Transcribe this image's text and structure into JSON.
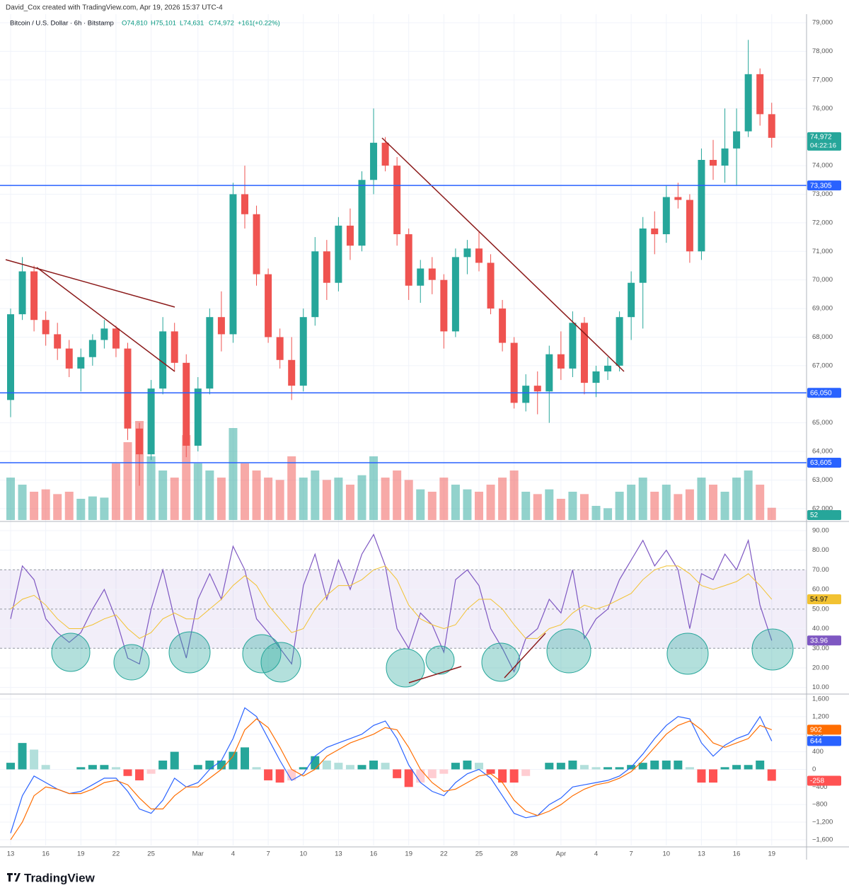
{
  "header": {
    "credit": "David_Cox created with TradingView.com, Apr 19, 2026 15:37 UTC-4",
    "symbol": "Bitcoin / U.S. Dollar · 6h · Bitstamp",
    "ohlc": [
      {
        "value": 74810,
        "label": "O74,810"
      },
      {
        "value": 75101,
        "label": "H75,101"
      },
      {
        "value": 74631,
        "label": "L74,631"
      },
      {
        "value": 74972,
        "label": "C74,972"
      }
    ],
    "change": {
      "value": 161,
      "label": "+161"
    },
    "change_pct": {
      "value": 0.22,
      "label": "(+0.22%)"
    },
    "countdown": "04:22:16"
  },
  "footer": {
    "brand": "TradingView"
  },
  "chart_data": [
    {
      "type": "candlestick",
      "up_color": "#26a69a",
      "down_color": "#ef5350",
      "grid": true,
      "categories": [
        "13",
        null,
        null,
        "16",
        null,
        null,
        "19",
        null,
        null,
        "22",
        null,
        null,
        "25",
        null,
        null,
        null,
        "Mar",
        null,
        null,
        "4",
        null,
        null,
        "7",
        null,
        null,
        "10",
        null,
        null,
        "13",
        null,
        null,
        "16",
        null,
        null,
        "19",
        null,
        null,
        "22",
        null,
        null,
        "25",
        null,
        null,
        "28",
        null,
        null,
        null,
        "Apr",
        null,
        null,
        "4",
        null,
        null,
        "7",
        null,
        null,
        "10",
        null,
        null,
        "13",
        null,
        null,
        "16",
        null,
        null,
        "19"
      ],
      "open": [
        65800,
        68800,
        70300,
        68600,
        68100,
        67600,
        66900,
        67300,
        67900,
        68300,
        67600,
        64800,
        63900,
        66200,
        68200,
        67100,
        64200,
        66200,
        68700,
        68100,
        73000,
        72300,
        70200,
        68000,
        67200,
        66300,
        68700,
        71000,
        69900,
        71900,
        71200,
        73500,
        74800,
        74000,
        71600,
        69800,
        70400,
        70000,
        68200,
        70800,
        71100,
        70600,
        69000,
        67800,
        65700,
        66300,
        66100,
        67400,
        66900,
        68500,
        66400,
        66800,
        67000,
        68700,
        69900,
        71800,
        71600,
        72900,
        72800,
        71000,
        74200,
        74000,
        74600,
        75200,
        77200,
        75800
      ],
      "high": [
        69000,
        70800,
        70500,
        68900,
        68500,
        67900,
        67600,
        68100,
        68600,
        68400,
        67800,
        65000,
        66500,
        68700,
        68500,
        67400,
        66600,
        69000,
        69600,
        73400,
        74000,
        72600,
        70400,
        68300,
        68000,
        69000,
        71500,
        71400,
        72200,
        72500,
        73800,
        76000,
        75000,
        74300,
        71800,
        70700,
        70800,
        70200,
        71100,
        71400,
        71700,
        70900,
        69300,
        68000,
        66700,
        66800,
        67700,
        68200,
        68900,
        68700,
        67000,
        67300,
        68900,
        70300,
        72200,
        72400,
        73300,
        73400,
        73000,
        74600,
        74900,
        76000,
        76000,
        78400,
        77400,
        76200
      ],
      "low": [
        65200,
        68600,
        68200,
        67700,
        67200,
        66600,
        66100,
        67000,
        67600,
        67300,
        64400,
        62800,
        63700,
        66000,
        66800,
        63800,
        64000,
        66000,
        67500,
        67800,
        71800,
        69800,
        67800,
        66900,
        65800,
        66100,
        68400,
        69300,
        69600,
        70700,
        71000,
        73000,
        73800,
        71200,
        69300,
        69200,
        69500,
        67600,
        68000,
        70200,
        70300,
        68800,
        67500,
        65500,
        65400,
        65300,
        65000,
        66500,
        66600,
        66000,
        65900,
        66500,
        66800,
        67900,
        68300,
        70900,
        71300,
        72500,
        70600,
        70700,
        73500,
        73400,
        73300,
        75000,
        75400,
        74631
      ],
      "close": [
        68800,
        70300,
        68600,
        68100,
        67600,
        66900,
        67300,
        67900,
        68300,
        67600,
        64800,
        63900,
        66200,
        68200,
        67100,
        64200,
        66200,
        68700,
        68100,
        73000,
        72300,
        70200,
        68000,
        67200,
        66300,
        68700,
        71000,
        69900,
        71900,
        71200,
        73500,
        74800,
        74000,
        71600,
        69800,
        70400,
        70000,
        68200,
        70800,
        71100,
        70600,
        69000,
        67800,
        65700,
        66300,
        66100,
        67400,
        66900,
        68500,
        66400,
        66800,
        67000,
        68700,
        69900,
        71800,
        71600,
        72900,
        72800,
        71000,
        74200,
        74000,
        74600,
        75200,
        77200,
        75800,
        74972
      ],
      "volume": [
        180,
        150,
        120,
        130,
        110,
        120,
        90,
        100,
        95,
        240,
        330,
        420,
        270,
        210,
        180,
        360,
        240,
        210,
        180,
        390,
        240,
        210,
        180,
        170,
        270,
        180,
        210,
        170,
        180,
        150,
        190,
        270,
        180,
        210,
        170,
        130,
        120,
        180,
        150,
        130,
        120,
        150,
        180,
        210,
        120,
        110,
        130,
        90,
        120,
        110,
        60,
        50,
        120,
        150,
        180,
        120,
        150,
        110,
        130,
        180,
        150,
        120,
        180,
        210,
        150,
        52
      ],
      "ylim": [
        61600,
        79300
      ],
      "yticks": [
        {
          "value": 62000,
          "label": "62,000"
        },
        {
          "value": 63000,
          "label": "63,000"
        },
        {
          "value": 64000,
          "label": "64,000"
        },
        {
          "value": 65000,
          "label": "65,000"
        },
        {
          "value": 66000,
          "label": "66,000"
        },
        {
          "value": 67000,
          "label": "67,000"
        },
        {
          "value": 68000,
          "label": "68,000"
        },
        {
          "value": 69000,
          "label": "69,000"
        },
        {
          "value": 70000,
          "label": "70,000"
        },
        {
          "value": 71000,
          "label": "71,000"
        },
        {
          "value": 72000,
          "label": "72,000"
        },
        {
          "value": 73000,
          "label": "73,000"
        },
        {
          "value": 74000,
          "label": "74,000"
        },
        {
          "value": 75000,
          "label": "75,000"
        },
        {
          "value": 76000,
          "label": "76,000"
        },
        {
          "value": 77000,
          "label": "77,000"
        },
        {
          "value": 78000,
          "label": "78,000"
        },
        {
          "value": 79000,
          "label": "79,000"
        }
      ],
      "levels": [
        {
          "value": 73305,
          "label": "73,305"
        },
        {
          "value": 66050,
          "label": "66,050"
        },
        {
          "value": 63605,
          "label": "63,605"
        }
      ],
      "level_color": "#2962ff",
      "price_tag": {
        "value": 74972,
        "label": "74,972"
      }
    },
    {
      "type": "line",
      "grid": true,
      "band_color": "rgba(126,87,194,0.1)",
      "hlines": [
        30,
        50,
        70
      ],
      "series": [
        {
          "name": "RSI",
          "color": "#7e57c2",
          "values": [
            45,
            72,
            65,
            45,
            38,
            33,
            38,
            50,
            60,
            45,
            25,
            22,
            50,
            70,
            45,
            25,
            55,
            68,
            55,
            82,
            70,
            45,
            38,
            30,
            22,
            62,
            78,
            55,
            75,
            60,
            78,
            88,
            72,
            40,
            30,
            48,
            42,
            28,
            65,
            70,
            62,
            40,
            30,
            18,
            35,
            40,
            55,
            48,
            70,
            35,
            45,
            50,
            65,
            75,
            85,
            72,
            80,
            70,
            40,
            68,
            65,
            78,
            70,
            85,
            52,
            33.96
          ]
        },
        {
          "name": "RSI MA",
          "color": "#f2c232",
          "values": [
            50,
            55,
            57,
            52,
            45,
            40,
            40,
            42,
            45,
            47,
            40,
            35,
            38,
            45,
            48,
            45,
            45,
            50,
            55,
            62,
            67,
            62,
            52,
            45,
            38,
            40,
            50,
            57,
            62,
            62,
            65,
            70,
            72,
            65,
            52,
            45,
            42,
            40,
            42,
            50,
            55,
            55,
            50,
            42,
            35,
            35,
            40,
            42,
            48,
            52,
            50,
            52,
            55,
            58,
            65,
            70,
            72,
            72,
            68,
            62,
            60,
            62,
            64,
            68,
            62,
            54.97
          ]
        }
      ],
      "ylim": [
        7,
        93.6
      ],
      "yticks": [
        {
          "value": 10,
          "label": "10.00"
        },
        {
          "value": 20,
          "label": "20.00"
        },
        {
          "value": 30,
          "label": "30.00"
        },
        {
          "value": 40,
          "label": "40.00"
        },
        {
          "value": 50,
          "label": "50.00"
        },
        {
          "value": 60,
          "label": "60.00"
        },
        {
          "value": 70,
          "label": "70.00"
        },
        {
          "value": 80,
          "label": "80.00"
        },
        {
          "value": 90,
          "label": "90.00"
        }
      ]
    },
    {
      "type": "macd",
      "grid": true,
      "series": [
        {
          "name": "MACD",
          "color": "#2962ff",
          "values": [
            -1450,
            -600,
            -150,
            -300,
            -450,
            -550,
            -500,
            -350,
            -200,
            -200,
            -500,
            -900,
            -1000,
            -700,
            -200,
            -400,
            -300,
            0,
            200,
            700,
            1400,
            1200,
            700,
            200,
            -250,
            -100,
            300,
            500,
            600,
            700,
            800,
            1000,
            1100,
            700,
            100,
            -300,
            -500,
            -600,
            -300,
            -100,
            0,
            -200,
            -600,
            -1000,
            -1100,
            -1050,
            -800,
            -650,
            -400,
            -350,
            -300,
            -250,
            -150,
            50,
            350,
            700,
            1000,
            1200,
            1150,
            600,
            300,
            550,
            700,
            800,
            1200,
            644
          ]
        },
        {
          "name": "Signal",
          "color": "#ff6d00",
          "values": [
            -1600,
            -1200,
            -600,
            -400,
            -450,
            -550,
            -550,
            -450,
            -300,
            -250,
            -350,
            -650,
            -900,
            -900,
            -600,
            -400,
            -400,
            -200,
            0,
            300,
            900,
            1150,
            950,
            500,
            0,
            -150,
            0,
            300,
            450,
            600,
            700,
            800,
            950,
            900,
            500,
            0,
            -300,
            -500,
            -450,
            -300,
            -150,
            -100,
            -300,
            -700,
            -950,
            -1050,
            -950,
            -800,
            -600,
            -450,
            -350,
            -300,
            -200,
            -50,
            200,
            500,
            800,
            1000,
            1100,
            900,
            600,
            500,
            600,
            700,
            1000,
            902
          ]
        }
      ],
      "histogram": [
        150,
        600,
        450,
        100,
        0,
        0,
        50,
        100,
        100,
        50,
        -150,
        -250,
        -100,
        200,
        400,
        0,
        100,
        200,
        200,
        400,
        500,
        50,
        -250,
        -300,
        -250,
        50,
        300,
        200,
        150,
        100,
        100,
        200,
        150,
        -200,
        -400,
        -300,
        -200,
        -100,
        150,
        200,
        150,
        -100,
        -300,
        -300,
        -150,
        0,
        150,
        150,
        200,
        100,
        50,
        50,
        50,
        100,
        150,
        200,
        200,
        200,
        50,
        -300,
        -300,
        50,
        100,
        100,
        200,
        -258
      ],
      "ylim": [
        -1730,
        1680
      ],
      "yticks": [
        {
          "value": 1600,
          "label": "1,600"
        },
        {
          "value": 1200,
          "label": "1,200"
        },
        800,
        400,
        0,
        {
          "value": -400,
          "label": "−400"
        },
        {
          "value": -800,
          "label": "−800"
        },
        {
          "value": -1200,
          "label": "−1,200"
        },
        {
          "value": -1600,
          "label": "−1,600"
        }
      ]
    }
  ]
}
